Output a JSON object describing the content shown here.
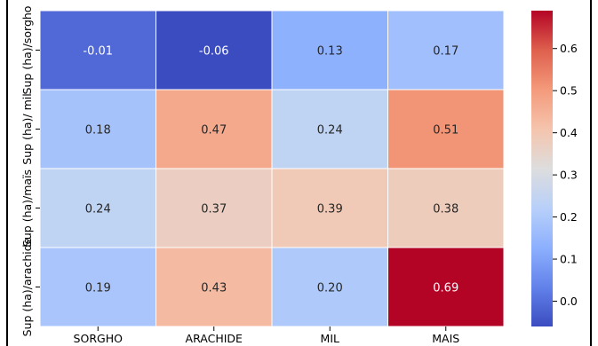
{
  "chart_data": {
    "type": "heatmap",
    "rows": [
      "Sup (ha)/sorgho",
      "Sup (ha)/ mil",
      "Sup (ha)/maïs",
      "Sup (ha)/arachide"
    ],
    "columns": [
      "SORGHO",
      "ARACHIDE",
      "MIL",
      "MAIS"
    ],
    "values": [
      [
        -0.01,
        -0.06,
        0.13,
        0.17
      ],
      [
        0.18,
        0.47,
        0.24,
        0.51
      ],
      [
        0.24,
        0.37,
        0.39,
        0.38
      ],
      [
        0.19,
        0.43,
        0.2,
        0.69
      ]
    ],
    "cell_labels": [
      [
        "-0.01",
        "-0.06",
        "0.13",
        "0.17"
      ],
      [
        "0.18",
        "0.47",
        "0.24",
        "0.51"
      ],
      [
        "0.24",
        "0.37",
        "0.39",
        "0.38"
      ],
      [
        "0.19",
        "0.43",
        "0.20",
        "0.69"
      ]
    ],
    "colormap": "coolwarm",
    "vmin": -0.06,
    "vmax": 0.69,
    "colorbar_ticks": [
      "0.0",
      "0.1",
      "0.2",
      "0.3",
      "0.4",
      "0.5",
      "0.6"
    ],
    "colorbar_tick_values": [
      0.0,
      0.1,
      0.2,
      0.3,
      0.4,
      0.5,
      0.6
    ],
    "grid_line_color": "#ffffff"
  }
}
